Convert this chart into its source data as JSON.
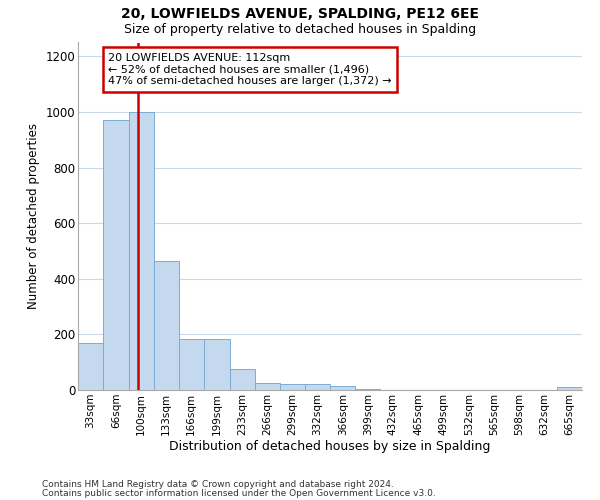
{
  "title1": "20, LOWFIELDS AVENUE, SPALDING, PE12 6EE",
  "title2": "Size of property relative to detached houses in Spalding",
  "xlabel": "Distribution of detached houses by size in Spalding",
  "ylabel": "Number of detached properties",
  "footer1": "Contains HM Land Registry data © Crown copyright and database right 2024.",
  "footer2": "Contains public sector information licensed under the Open Government Licence v3.0.",
  "annotation_line1": "20 LOWFIELDS AVENUE: 112sqm",
  "annotation_line2": "← 52% of detached houses are smaller (1,496)",
  "annotation_line3": "47% of semi-detached houses are larger (1,372) →",
  "bar_edges": [
    33,
    66,
    100,
    133,
    166,
    199,
    233,
    266,
    299,
    332,
    366,
    399,
    432,
    465,
    499,
    532,
    565,
    598,
    632,
    665,
    698
  ],
  "bar_heights": [
    170,
    970,
    1000,
    465,
    185,
    185,
    75,
    25,
    20,
    20,
    15,
    5,
    0,
    0,
    0,
    0,
    0,
    0,
    0,
    10
  ],
  "property_size": 112,
  "bar_color": "#c5d9ee",
  "bar_edge_color": "#7aadd4",
  "red_line_color": "#cc0000",
  "annotation_box_color": "#ffffff",
  "annotation_box_edge": "#cc0000",
  "ylim": [
    0,
    1250
  ],
  "yticks": [
    0,
    200,
    400,
    600,
    800,
    1000,
    1200
  ],
  "background_color": "#ffffff",
  "grid_color": "#c8d8e8"
}
